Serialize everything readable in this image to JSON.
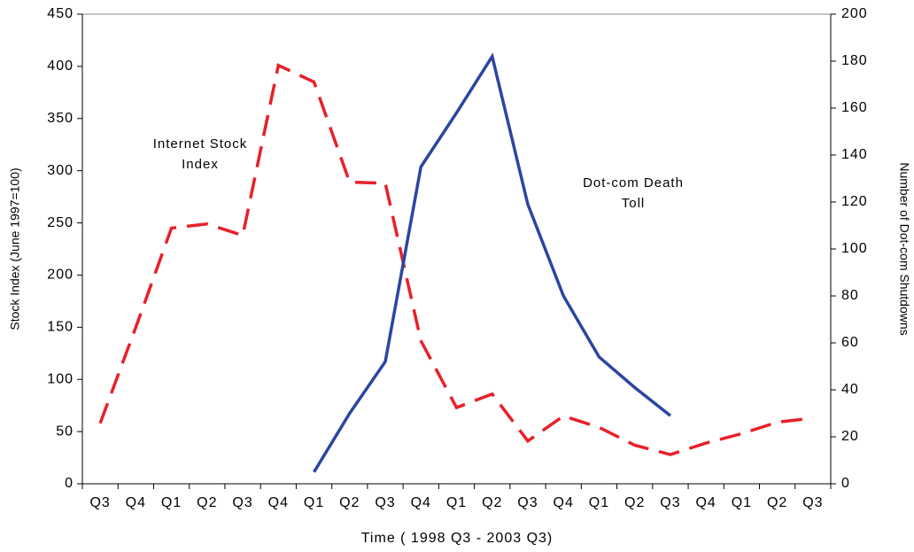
{
  "chart_data": {
    "type": "line",
    "categories": [
      "Q3",
      "Q4",
      "Q1",
      "Q2",
      "Q3",
      "Q4",
      "Q1",
      "Q2",
      "Q3",
      "Q4",
      "Q1",
      "Q2",
      "Q3",
      "Q4",
      "Q1",
      "Q2",
      "Q3",
      "Q4",
      "Q1",
      "Q2",
      "Q3"
    ],
    "series": [
      {
        "name": "Internet Stock Index",
        "color": "#e8202a",
        "dashed": true,
        "values": [
          58,
          150,
          245,
          249,
          238,
          401,
          385,
          289,
          288,
          137,
          73,
          86,
          41,
          65,
          54,
          37,
          28,
          39,
          48,
          59,
          63
        ]
      },
      {
        "name": "Dot-com Death Toll",
        "color": "#2c45a0",
        "axis": "y2",
        "values": [
          null,
          null,
          null,
          null,
          null,
          null,
          5,
          30,
          52,
          135,
          158,
          182,
          119,
          80,
          54,
          41,
          29,
          null,
          null,
          null,
          null
        ]
      }
    ],
    "annotations": [
      [
        "Internet Stock",
        "Index"
      ],
      [
        "Dot-com Death",
        "Toll"
      ]
    ],
    "ylim": [
      0,
      450
    ],
    "yticks": [
      0,
      50,
      100,
      150,
      200,
      250,
      300,
      350,
      400,
      450
    ],
    "y2lim": [
      0,
      200
    ],
    "y2ticks": [
      0,
      20,
      40,
      60,
      80,
      100,
      120,
      140,
      160,
      180,
      200
    ],
    "ylabel": "Stock Index (June 1997=100)",
    "y2label": "Number of Dot-com Shutdowns",
    "xlabel": "Time ( 1998 Q3 - 2003 Q3)"
  }
}
